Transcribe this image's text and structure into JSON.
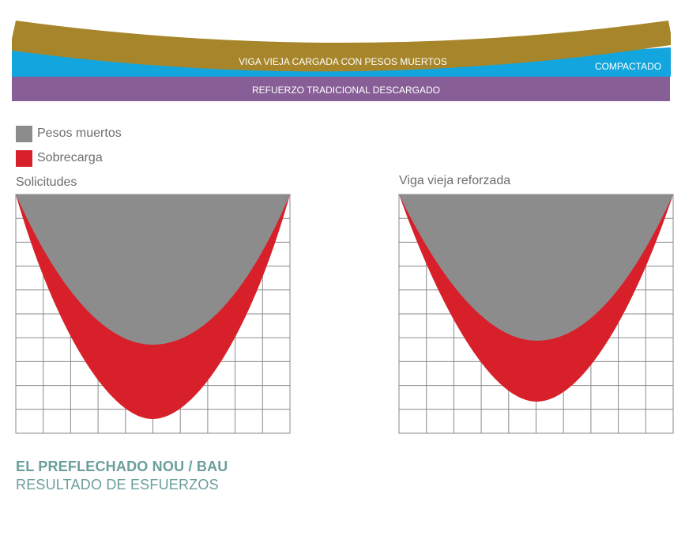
{
  "beams": {
    "top_label": "VIGA VIEJA CARGADA CON PESOS MUERTOS",
    "compactado_label": "COMPACTADO",
    "bottom_label": "REFUERZO TRADICIONAL DESCARGADO",
    "colors": {
      "old_beam": "#a7862b",
      "compactado": "#12a5de",
      "reinforcement": "#875e96"
    }
  },
  "legend": [
    {
      "label": "Pesos muertos",
      "color": "#8c8c8c"
    },
    {
      "label": "Sobrecarga",
      "color": "#d8202a"
    }
  ],
  "charts": [
    {
      "title": "Solicitudes"
    },
    {
      "title": "Viga vieja reforzada"
    }
  ],
  "footer": {
    "title": "EL PREFLECHADO NOU / BAU",
    "subtitle": "RESULTADO DE ESFUERZOS"
  }
}
